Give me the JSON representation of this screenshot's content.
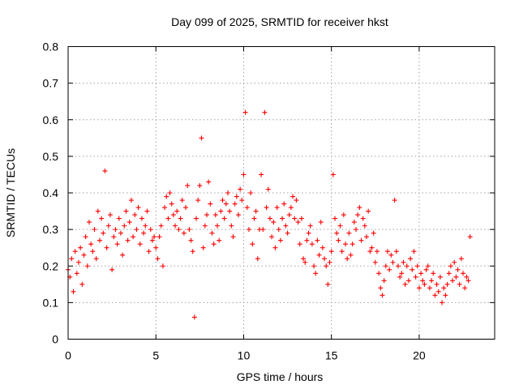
{
  "chart_data": {
    "type": "scatter",
    "title": "Day 099 of 2025, SRMTID for receiver hkst",
    "xlabel": "GPS time / hours",
    "ylabel": "SRMTID / TECUs",
    "xlim": [
      0,
      24.3
    ],
    "ylim": [
      0,
      0.8
    ],
    "xticks": [
      0,
      5,
      10,
      15,
      20
    ],
    "xtick_labels": [
      "0",
      "5",
      "10",
      "15",
      "20"
    ],
    "yticks": [
      0,
      0.1,
      0.2,
      0.3,
      0.4,
      0.5,
      0.6,
      0.7,
      0.8
    ],
    "ytick_labels": [
      "0",
      "0.1",
      "0.2",
      "0.3",
      "0.4",
      "0.5",
      "0.6",
      "0.7",
      "0.8"
    ],
    "grid": true,
    "marker": "+",
    "series": [
      {
        "name": "SRMTID",
        "color": "#ff0000",
        "x": [
          0.0,
          0.1,
          0.2,
          0.3,
          0.4,
          0.5,
          0.6,
          0.7,
          0.8,
          0.9,
          1.0,
          1.1,
          1.2,
          1.3,
          1.4,
          1.5,
          1.6,
          1.7,
          1.8,
          1.9,
          2.0,
          2.1,
          2.2,
          2.3,
          2.4,
          2.5,
          2.6,
          2.7,
          2.8,
          2.9,
          3.0,
          3.1,
          3.2,
          3.3,
          3.4,
          3.5,
          3.6,
          3.7,
          3.8,
          3.9,
          4.0,
          4.1,
          4.2,
          4.3,
          4.4,
          4.5,
          4.6,
          4.7,
          4.8,
          4.9,
          5.0,
          5.1,
          5.2,
          5.3,
          5.4,
          5.5,
          5.6,
          5.7,
          5.8,
          5.9,
          6.0,
          6.1,
          6.2,
          6.3,
          6.4,
          6.5,
          6.6,
          6.7,
          6.8,
          6.9,
          7.0,
          7.1,
          7.2,
          7.3,
          7.4,
          7.5,
          7.6,
          7.7,
          7.8,
          7.9,
          8.0,
          8.1,
          8.2,
          8.3,
          8.4,
          8.5,
          8.6,
          8.7,
          8.8,
          8.9,
          9.0,
          9.1,
          9.2,
          9.3,
          9.4,
          9.5,
          9.6,
          9.7,
          9.8,
          9.9,
          10.0,
          10.1,
          10.2,
          10.3,
          10.4,
          10.5,
          10.6,
          10.7,
          10.8,
          10.9,
          11.0,
          11.1,
          11.2,
          11.3,
          11.4,
          11.5,
          11.6,
          11.7,
          11.8,
          11.9,
          12.0,
          12.1,
          12.2,
          12.3,
          12.4,
          12.5,
          12.6,
          12.7,
          12.8,
          12.9,
          13.0,
          13.1,
          13.2,
          13.3,
          13.4,
          13.5,
          13.6,
          13.7,
          13.8,
          13.9,
          14.0,
          14.1,
          14.2,
          14.3,
          14.4,
          14.5,
          14.6,
          14.7,
          14.8,
          14.9,
          15.0,
          15.1,
          15.2,
          15.3,
          15.4,
          15.5,
          15.6,
          15.7,
          15.8,
          15.9,
          16.0,
          16.1,
          16.2,
          16.3,
          16.4,
          16.5,
          16.6,
          16.7,
          16.8,
          16.9,
          17.0,
          17.1,
          17.2,
          17.3,
          17.4,
          17.5,
          17.6,
          17.7,
          17.8,
          17.9,
          18.0,
          18.1,
          18.2,
          18.3,
          18.4,
          18.5,
          18.6,
          18.7,
          18.8,
          18.9,
          19.0,
          19.1,
          19.2,
          19.3,
          19.4,
          19.5,
          19.6,
          19.7,
          19.8,
          19.9,
          20.0,
          20.1,
          20.2,
          20.3,
          20.4,
          20.5,
          20.6,
          20.7,
          20.8,
          20.9,
          21.0,
          21.1,
          21.2,
          21.3,
          21.4,
          21.5,
          21.6,
          21.7,
          21.8,
          21.9,
          22.0,
          22.1,
          22.2,
          22.3,
          22.4,
          22.5,
          22.6,
          22.7,
          22.8,
          22.9
        ],
        "y": [
          0.19,
          0.17,
          0.22,
          0.13,
          0.24,
          0.18,
          0.21,
          0.25,
          0.15,
          0.23,
          0.28,
          0.2,
          0.32,
          0.26,
          0.24,
          0.3,
          0.22,
          0.35,
          0.27,
          0.33,
          0.29,
          0.46,
          0.25,
          0.31,
          0.34,
          0.19,
          0.28,
          0.3,
          0.26,
          0.33,
          0.29,
          0.23,
          0.31,
          0.35,
          0.27,
          0.32,
          0.38,
          0.28,
          0.34,
          0.3,
          0.36,
          0.26,
          0.33,
          0.29,
          0.31,
          0.35,
          0.24,
          0.3,
          0.27,
          0.28,
          0.25,
          0.22,
          0.28,
          0.31,
          0.2,
          0.36,
          0.39,
          0.33,
          0.4,
          0.37,
          0.34,
          0.31,
          0.35,
          0.3,
          0.33,
          0.38,
          0.29,
          0.36,
          0.42,
          0.3,
          0.27,
          0.24,
          0.06,
          0.33,
          0.38,
          0.42,
          0.55,
          0.25,
          0.31,
          0.34,
          0.43,
          0.37,
          0.29,
          0.26,
          0.34,
          0.31,
          0.27,
          0.35,
          0.38,
          0.33,
          0.37,
          0.4,
          0.35,
          0.31,
          0.28,
          0.37,
          0.39,
          0.34,
          0.41,
          0.38,
          0.45,
          0.62,
          0.36,
          0.3,
          0.4,
          0.26,
          0.33,
          0.35,
          0.22,
          0.3,
          0.45,
          0.3,
          0.62,
          0.36,
          0.41,
          0.33,
          0.28,
          0.32,
          0.25,
          0.36,
          0.3,
          0.27,
          0.33,
          0.37,
          0.31,
          0.29,
          0.34,
          0.36,
          0.39,
          0.33,
          0.38,
          0.32,
          0.26,
          0.33,
          0.22,
          0.21,
          0.27,
          0.29,
          0.31,
          0.26,
          0.2,
          0.18,
          0.27,
          0.23,
          0.32,
          0.25,
          0.22,
          0.2,
          0.15,
          0.21,
          0.24,
          0.45,
          0.33,
          0.29,
          0.27,
          0.31,
          0.24,
          0.34,
          0.26,
          0.22,
          0.29,
          0.23,
          0.26,
          0.32,
          0.3,
          0.34,
          0.36,
          0.27,
          0.33,
          0.31,
          0.28,
          0.35,
          0.24,
          0.25,
          0.29,
          0.21,
          0.24,
          0.18,
          0.14,
          0.12,
          0.16,
          0.2,
          0.24,
          0.19,
          0.23,
          0.21,
          0.38,
          0.24,
          0.2,
          0.17,
          0.18,
          0.21,
          0.15,
          0.2,
          0.16,
          0.22,
          0.19,
          0.24,
          0.17,
          0.2,
          0.14,
          0.18,
          0.16,
          0.15,
          0.19,
          0.2,
          0.14,
          0.16,
          0.18,
          0.12,
          0.15,
          0.13,
          0.17,
          0.1,
          0.14,
          0.12,
          0.15,
          0.18,
          0.2,
          0.16,
          0.21,
          0.17,
          0.19,
          0.15,
          0.22,
          0.18,
          0.14,
          0.17,
          0.16,
          0.28
        ]
      }
    ]
  }
}
